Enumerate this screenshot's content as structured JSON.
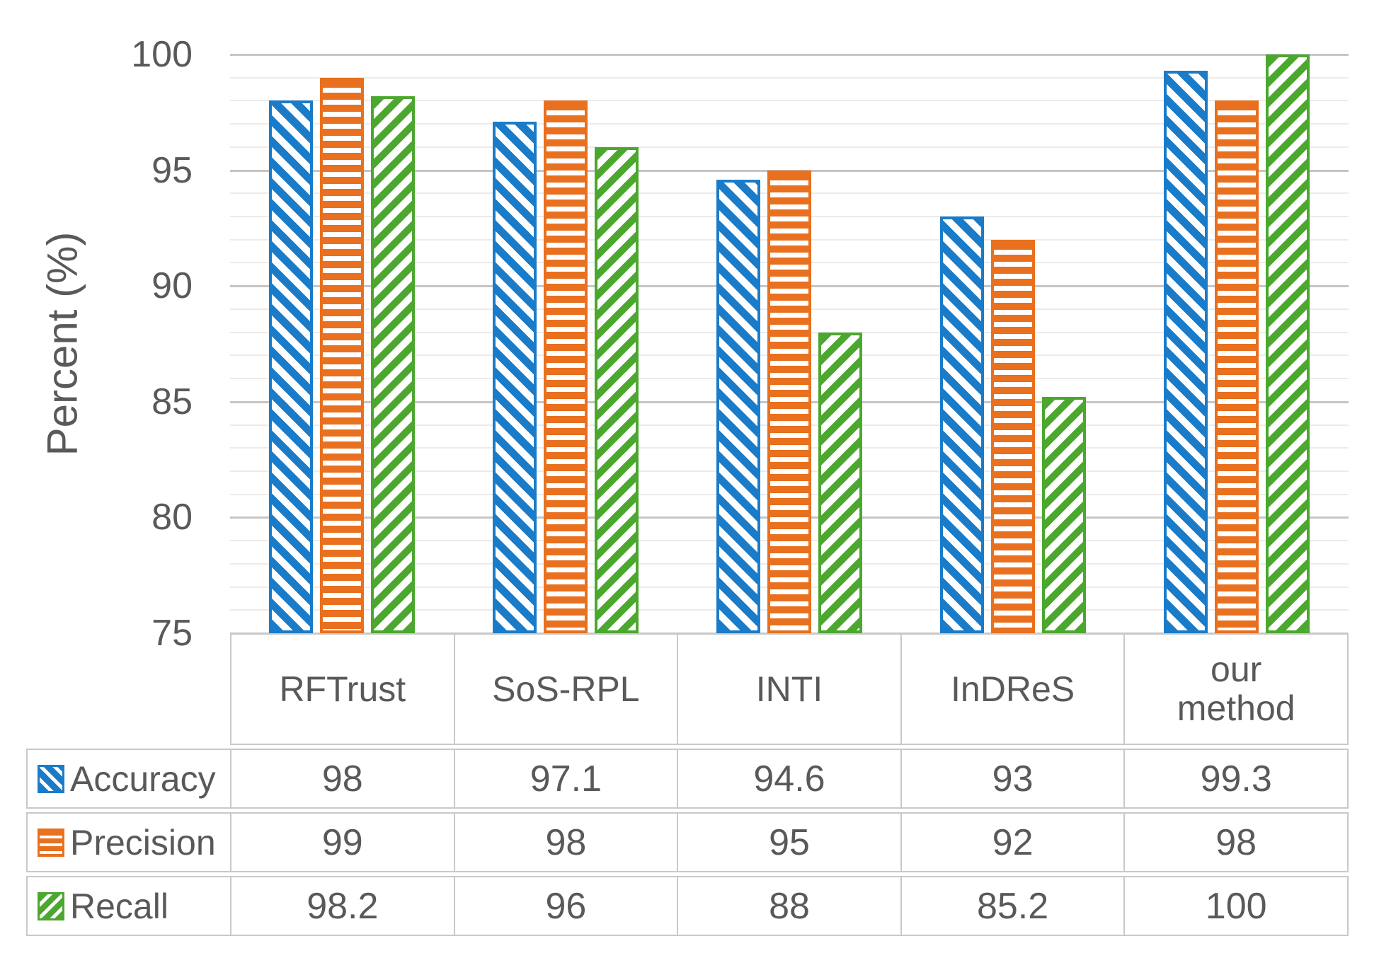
{
  "chart_data": {
    "type": "bar",
    "title": "",
    "xlabel": "",
    "ylabel": "Percent (%)",
    "ylim": [
      75,
      100
    ],
    "yticks": [
      75,
      80,
      85,
      90,
      95,
      100
    ],
    "minor_unit": 1,
    "major_unit": 5,
    "grid": "horizontal minor every 1 unit (light), major every 5 units (darker)",
    "legend_position": "first column of data table below chart",
    "categories": [
      "RFTrust",
      "SoS-RPL",
      "INTI",
      "InDReS",
      "our method"
    ],
    "series": [
      {
        "name": "Accuracy",
        "pattern": "diagonal-down",
        "color": "#1A7CC9",
        "values": [
          98,
          97.1,
          94.6,
          93,
          99.3
        ]
      },
      {
        "name": "Precision",
        "pattern": "horizontal",
        "color": "#E8701F",
        "values": [
          99,
          98,
          95,
          92,
          98
        ]
      },
      {
        "name": "Recall",
        "pattern": "diagonal-up",
        "color": "#4CA72F",
        "values": [
          98.2,
          96,
          88,
          85.2,
          100
        ]
      }
    ],
    "data_table_shown": true
  },
  "style": {
    "text_color": "#595959",
    "grid_minor_color": "#ECEBEB",
    "grid_major_color": "#C6C5C5",
    "table_border_color": "#C9C9C9",
    "background": "#FFFFFF"
  }
}
